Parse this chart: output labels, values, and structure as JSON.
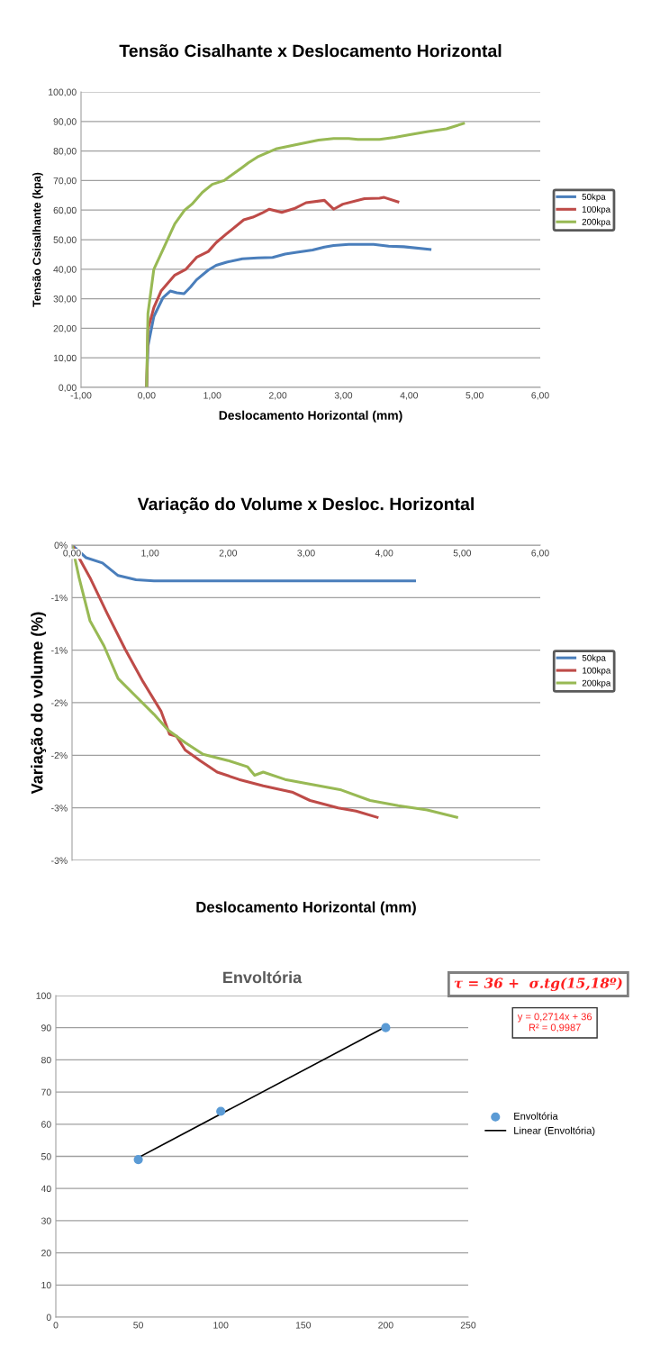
{
  "chart_data": [
    {
      "type": "line",
      "title": "Tensão Cisalhante x Deslocamento Horizontal",
      "xlabel": "Deslocamento Horizontal (mm)",
      "ylabel": "Tensão Csisalhante (kpa)",
      "xlim": [
        -1,
        6
      ],
      "xticks": [
        {
          "value": -1,
          "label": "-1,00"
        },
        {
          "value": 0,
          "label": "0,00"
        },
        {
          "value": 1,
          "label": "1,00"
        },
        {
          "value": 2,
          "label": "2,00"
        },
        {
          "value": 3,
          "label": "3,00"
        },
        {
          "value": 4,
          "label": "4,00"
        },
        {
          "value": 5,
          "label": "5,00"
        },
        {
          "value": 6,
          "label": "6,00"
        }
      ],
      "ylim": [
        0,
        100
      ],
      "yticks": [
        {
          "value": 0,
          "label": "0,00"
        },
        {
          "value": 10,
          "label": "10,00"
        },
        {
          "value": 20,
          "label": "20,00"
        },
        {
          "value": 30,
          "label": "30,00"
        },
        {
          "value": 40,
          "label": "40,00"
        },
        {
          "value": 50,
          "label": "50,00"
        },
        {
          "value": 60,
          "label": "60,00"
        },
        {
          "value": 70,
          "label": "70,00"
        },
        {
          "value": 80,
          "label": "80,00"
        },
        {
          "value": 90,
          "label": "90,00"
        },
        {
          "value": 100,
          "label": "100,00"
        }
      ],
      "grid": "y",
      "legend": "right",
      "marker": "none",
      "line_style": "solid",
      "series": [
        {
          "name": "50kpa",
          "color": "#4a7ebb",
          "x": [
            0,
            0.02,
            0.11,
            0.25,
            0.36,
            0.46,
            0.57,
            0.67,
            0.76,
            0.94,
            1.06,
            1.22,
            1.46,
            1.69,
            1.92,
            2.11,
            2.29,
            2.53,
            2.71,
            2.85,
            3.08,
            3.46,
            3.69,
            3.92,
            4.32
          ],
          "values": [
            0,
            14,
            24,
            30.4,
            32.6,
            32,
            31.7,
            34,
            36.4,
            39.7,
            41.3,
            42.4,
            43.5,
            43.8,
            44,
            45.1,
            45.7,
            46.5,
            47.5,
            48,
            48.4,
            48.4,
            47.8,
            47.6,
            46.7
          ]
        },
        {
          "name": "100kpa",
          "color": "#be4b48",
          "x": [
            0,
            0.02,
            0.11,
            0.22,
            0.43,
            0.6,
            0.76,
            0.94,
            1.06,
            1.22,
            1.48,
            1.62,
            1.76,
            1.87,
            2.06,
            2.25,
            2.43,
            2.71,
            2.85,
            2.99,
            3.32,
            3.55,
            3.62,
            3.83
          ],
          "values": [
            0,
            19.6,
            27,
            32.6,
            38,
            40,
            44,
            46,
            49,
            52,
            56.7,
            57.6,
            59,
            60.3,
            59.2,
            60.5,
            62.5,
            63.3,
            60.3,
            62,
            63.9,
            64,
            64.3,
            62.8
          ]
        },
        {
          "name": "200kpa",
          "color": "#98b954",
          "x": [
            0,
            0.02,
            0.11,
            0.25,
            0.43,
            0.58,
            0.69,
            0.85,
            1.0,
            1.18,
            1.46,
            1.55,
            1.69,
            1.97,
            2.25,
            2.62,
            2.85,
            3.08,
            3.22,
            3.55,
            3.78,
            4.01,
            4.29,
            4.57,
            4.83
          ],
          "values": [
            0,
            25,
            40,
            46.7,
            55.4,
            60,
            62,
            66,
            68.7,
            70,
            74.5,
            76,
            78,
            80.7,
            82,
            83.7,
            84.2,
            84.2,
            83.9,
            83.9,
            84.6,
            85.5,
            86.6,
            87.5,
            89.3
          ]
        }
      ]
    },
    {
      "type": "line",
      "title": "Variação do Volume x Desloc. Horizontal",
      "xlabel": "Deslocamento Horizontal (mm)",
      "ylabel": "Variação do volume (%)",
      "xlim": [
        0,
        6
      ],
      "xticks": [
        {
          "value": 0,
          "label": "0,00"
        },
        {
          "value": 1,
          "label": "1,00"
        },
        {
          "value": 2,
          "label": "2,00"
        },
        {
          "value": 3,
          "label": "3,00"
        },
        {
          "value": 4,
          "label": "4,00"
        },
        {
          "value": 5,
          "label": "5,00"
        },
        {
          "value": 6,
          "label": "6,00"
        }
      ],
      "ylim": [
        -3,
        0
      ],
      "yticks": [
        {
          "value": 0,
          "label": "0%"
        },
        {
          "value": -0.5,
          "label": "-1%"
        },
        {
          "value": -1,
          "label": "-1%"
        },
        {
          "value": -1.5,
          "label": "-2%"
        },
        {
          "value": -2,
          "label": "-2%"
        },
        {
          "value": -2.5,
          "label": "-3%"
        },
        {
          "value": -3,
          "label": "-3%"
        }
      ],
      "grid": "y",
      "legend": "right",
      "marker": "none",
      "line_style": "solid",
      "series": [
        {
          "name": "50kpa",
          "color": "#4a7ebb",
          "x": [
            0,
            0.18,
            0.39,
            0.59,
            0.82,
            1.05,
            4.39
          ],
          "values": [
            0,
            -0.12,
            -0.17,
            -0.29,
            -0.33,
            -0.34,
            -0.34
          ]
        },
        {
          "name": "100kpa",
          "color": "#be4b48",
          "x": [
            0,
            0.23,
            0.45,
            0.68,
            0.91,
            1.14,
            1.25,
            1.34,
            1.45,
            1.64,
            1.86,
            2.14,
            2.45,
            2.82,
            3.05,
            3.41,
            3.64,
            3.91
          ],
          "values": [
            0,
            -0.31,
            -0.65,
            -0.99,
            -1.3,
            -1.58,
            -1.8,
            -1.82,
            -1.95,
            -2.05,
            -2.16,
            -2.23,
            -2.29,
            -2.35,
            -2.43,
            -2.5,
            -2.53,
            -2.59
          ]
        },
        {
          "name": "200kpa",
          "color": "#98b954",
          "x": [
            0,
            0.09,
            0.23,
            0.41,
            0.59,
            0.82,
            1.05,
            1.23,
            1.45,
            1.68,
            2.0,
            2.25,
            2.34,
            2.45,
            2.73,
            3.09,
            3.45,
            3.82,
            4.18,
            4.55,
            4.93
          ],
          "values": [
            0,
            -0.31,
            -0.72,
            -0.96,
            -1.27,
            -1.44,
            -1.61,
            -1.76,
            -1.88,
            -1.99,
            -2.05,
            -2.11,
            -2.19,
            -2.16,
            -2.23,
            -2.28,
            -2.33,
            -2.43,
            -2.48,
            -2.52,
            -2.59
          ]
        }
      ]
    },
    {
      "type": "scatter",
      "title": "Envoltória",
      "annotations": [
        "τ = 36 +  σ.tg(15,18º)",
        "y = 0,2714x + 36\nR² = 0,9987"
      ],
      "xlim": [
        0,
        250
      ],
      "xticks": [
        0,
        50,
        100,
        150,
        200,
        250
      ],
      "ylim": [
        0,
        100
      ],
      "yticks": [
        0,
        10,
        20,
        30,
        40,
        50,
        60,
        70,
        80,
        90,
        100
      ],
      "grid": "y",
      "legend": "right",
      "marker": "circle",
      "series": [
        {
          "name": "Envoltória",
          "color": "#5b9bd5",
          "x": [
            50,
            100,
            200
          ],
          "values": [
            49,
            64,
            90
          ]
        },
        {
          "name": "Linear (Envoltória)",
          "type": "line",
          "color": "#000000",
          "x": [
            50,
            200
          ],
          "values": [
            49.6,
            90.3
          ],
          "marker": "none"
        }
      ]
    }
  ]
}
